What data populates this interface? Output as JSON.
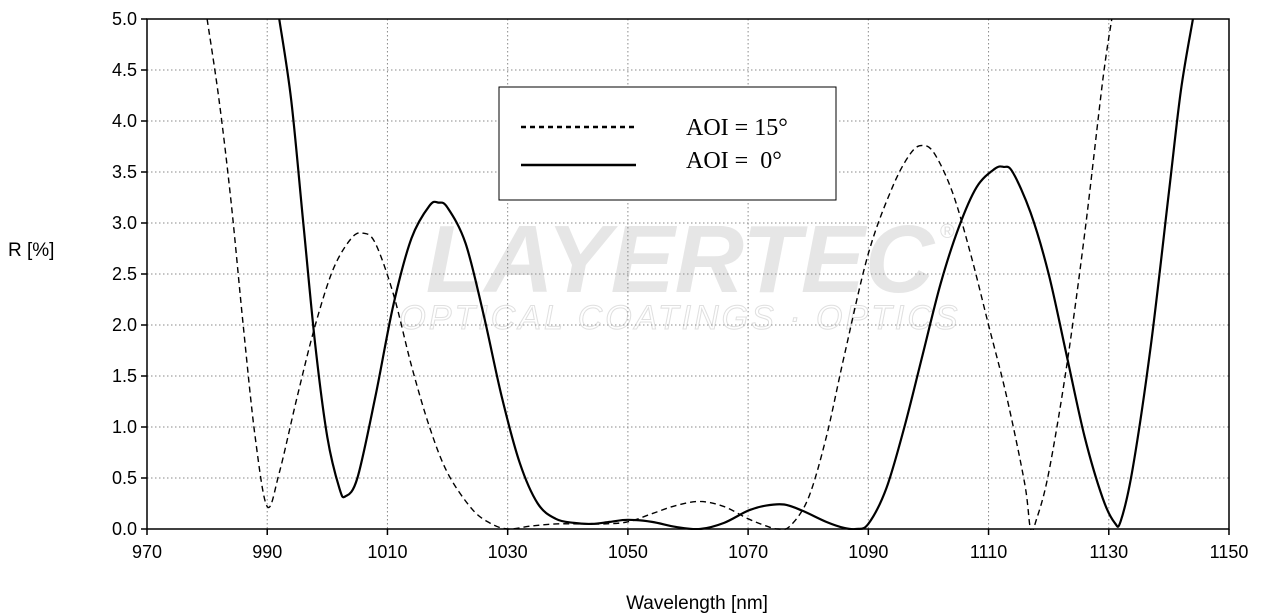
{
  "chart_data": {
    "type": "line",
    "xlabel": "Wavelength [nm]",
    "ylabel": "R [%]",
    "xlim": [
      970,
      1150
    ],
    "ylim": [
      0,
      5
    ],
    "xticks": [
      "970",
      "990",
      "1010",
      "1030",
      "1050",
      "1070",
      "1090",
      "1110",
      "1130",
      "1150"
    ],
    "yticks": [
      "0.0",
      "0.5",
      "1.0",
      "1.5",
      "2.0",
      "2.5",
      "3.0",
      "3.5",
      "4.0",
      "4.5",
      "5.0"
    ],
    "grid": true,
    "legend_position": "top-center",
    "watermark": {
      "brand": "LAYERTEC",
      "tagline": "OPTICAL COATINGS · OPTICS",
      "mark": "®"
    },
    "series": [
      {
        "name": "AOI = 15°",
        "style": "dashed",
        "color": "#000000",
        "points": [
          [
            980,
            5.0
          ],
          [
            982,
            4.2
          ],
          [
            984,
            3.2
          ],
          [
            986,
            2.0
          ],
          [
            988,
            0.9
          ],
          [
            990,
            0.22
          ],
          [
            992,
            0.55
          ],
          [
            995,
            1.3
          ],
          [
            998,
            2.0
          ],
          [
            1001,
            2.55
          ],
          [
            1004,
            2.85
          ],
          [
            1006,
            2.9
          ],
          [
            1008,
            2.8
          ],
          [
            1011,
            2.3
          ],
          [
            1014,
            1.6
          ],
          [
            1017,
            1.0
          ],
          [
            1020,
            0.55
          ],
          [
            1024,
            0.2
          ],
          [
            1027,
            0.06
          ],
          [
            1030,
            0.0
          ],
          [
            1034,
            0.03
          ],
          [
            1038,
            0.05
          ],
          [
            1042,
            0.05
          ],
          [
            1046,
            0.05
          ],
          [
            1050,
            0.07
          ],
          [
            1054,
            0.15
          ],
          [
            1058,
            0.23
          ],
          [
            1062,
            0.27
          ],
          [
            1066,
            0.22
          ],
          [
            1070,
            0.1
          ],
          [
            1073,
            0.03
          ],
          [
            1075,
            0.0
          ],
          [
            1077,
            0.03
          ],
          [
            1080,
            0.3
          ],
          [
            1083,
            0.9
          ],
          [
            1086,
            1.7
          ],
          [
            1090,
            2.7
          ],
          [
            1094,
            3.35
          ],
          [
            1097,
            3.68
          ],
          [
            1099,
            3.76
          ],
          [
            1101,
            3.68
          ],
          [
            1104,
            3.3
          ],
          [
            1107,
            2.7
          ],
          [
            1110,
            2.0
          ],
          [
            1113,
            1.3
          ],
          [
            1116,
            0.45
          ],
          [
            1117,
            0.0
          ],
          [
            1118,
            0.1
          ],
          [
            1120,
            0.55
          ],
          [
            1123,
            1.6
          ],
          [
            1126,
            2.9
          ],
          [
            1129,
            4.4
          ],
          [
            1130.5,
            5.0
          ]
        ]
      },
      {
        "name": "AOI =  0°",
        "style": "solid",
        "color": "#000000",
        "points": [
          [
            992,
            5.0
          ],
          [
            994,
            4.2
          ],
          [
            996,
            3.0
          ],
          [
            998,
            1.8
          ],
          [
            1000,
            0.9
          ],
          [
            1002,
            0.4
          ],
          [
            1003,
            0.32
          ],
          [
            1005,
            0.5
          ],
          [
            1008,
            1.3
          ],
          [
            1011,
            2.2
          ],
          [
            1014,
            2.85
          ],
          [
            1017,
            3.17
          ],
          [
            1018.5,
            3.2
          ],
          [
            1020,
            3.15
          ],
          [
            1023,
            2.8
          ],
          [
            1026,
            2.1
          ],
          [
            1029,
            1.3
          ],
          [
            1032,
            0.65
          ],
          [
            1035,
            0.25
          ],
          [
            1038,
            0.1
          ],
          [
            1041,
            0.06
          ],
          [
            1044,
            0.05
          ],
          [
            1047,
            0.07
          ],
          [
            1050,
            0.09
          ],
          [
            1054,
            0.07
          ],
          [
            1058,
            0.02
          ],
          [
            1062,
            0.0
          ],
          [
            1066,
            0.06
          ],
          [
            1070,
            0.18
          ],
          [
            1073,
            0.23
          ],
          [
            1076,
            0.24
          ],
          [
            1079,
            0.18
          ],
          [
            1083,
            0.07
          ],
          [
            1086,
            0.01
          ],
          [
            1088,
            0.0
          ],
          [
            1090,
            0.05
          ],
          [
            1093,
            0.4
          ],
          [
            1096,
            1.0
          ],
          [
            1099,
            1.7
          ],
          [
            1102,
            2.4
          ],
          [
            1105,
            2.95
          ],
          [
            1108,
            3.35
          ],
          [
            1111,
            3.53
          ],
          [
            1112.5,
            3.55
          ],
          [
            1114,
            3.5
          ],
          [
            1117,
            3.1
          ],
          [
            1120,
            2.5
          ],
          [
            1123,
            1.7
          ],
          [
            1126,
            0.9
          ],
          [
            1129,
            0.3
          ],
          [
            1131,
            0.06
          ],
          [
            1132,
            0.08
          ],
          [
            1134,
            0.6
          ],
          [
            1137,
            1.8
          ],
          [
            1140,
            3.3
          ],
          [
            1142,
            4.3
          ],
          [
            1144,
            5.0
          ]
        ]
      }
    ]
  }
}
